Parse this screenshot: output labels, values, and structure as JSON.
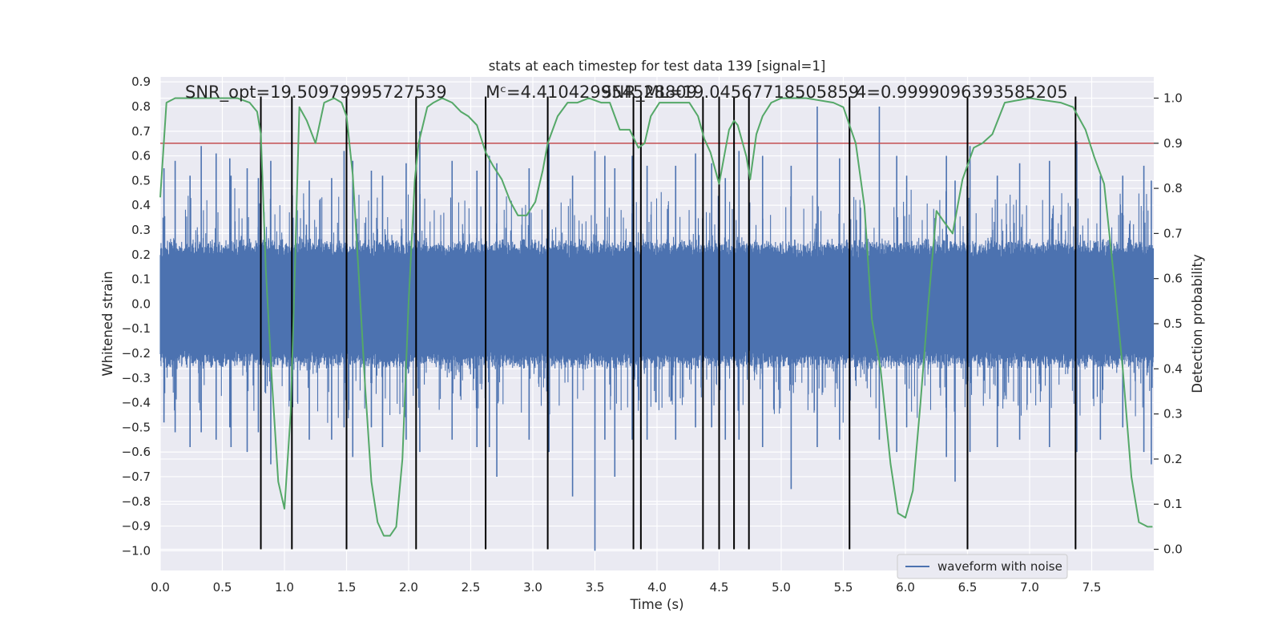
{
  "chart_data": {
    "type": "line",
    "title": "stats at each timestep for test data 139 [signal=1]",
    "xlabel": "Time (s)",
    "ylabel": "Whitened strain",
    "y2label": "Detection probability",
    "xlim": [
      0.0,
      8.0
    ],
    "ylim": [
      -1.08,
      0.92
    ],
    "y2lim": [
      -0.047,
      1.047
    ],
    "x_ticks": [
      "0.0",
      "0.5",
      "1.0",
      "1.5",
      "2.0",
      "2.5",
      "3.0",
      "3.5",
      "4.0",
      "4.5",
      "5.0",
      "5.5",
      "6.0",
      "6.5",
      "7.0",
      "7.5"
    ],
    "y_ticks": [
      "0.9",
      "0.8",
      "0.7",
      "0.6",
      "0.5",
      "0.4",
      "0.3",
      "0.2",
      "0.1",
      "0.0",
      "−0.1",
      "−0.2",
      "−0.3",
      "−0.4",
      "−0.5",
      "−0.6",
      "−0.7",
      "−0.8",
      "−0.9",
      "−1.0"
    ],
    "y2_ticks": [
      "1.0",
      "0.9",
      "0.8",
      "0.7",
      "0.6",
      "0.5",
      "0.4",
      "0.3",
      "0.2",
      "0.1",
      "0.0"
    ],
    "grid": true,
    "legend": {
      "placement": "bottom-right",
      "entries": [
        "waveform with noise"
      ]
    },
    "annotations": [
      {
        "text": "SNR_opt=19.50979995727539",
        "x": 0.2
      },
      {
        "text": "Mᶜ=4.410429954528809",
        "x": 2.62
      },
      {
        "text": "SNR_ML=19.04567718505859",
        "x": 3.55
      },
      {
        "text": "4=0.9999096393585205",
        "x": 5.6
      }
    ],
    "threshold_probability": 0.9,
    "triggers_s": [
      0.81,
      1.06,
      1.5,
      2.06,
      2.62,
      3.12,
      3.81,
      3.87,
      4.37,
      4.5,
      4.62,
      4.74,
      5.55,
      6.5,
      7.37
    ],
    "series": [
      {
        "name": "waveform with noise",
        "color": "#4c72b0",
        "core_amplitude": 0.27,
        "peaks": [
          [
            0.03,
            0.55,
            -0.48
          ],
          [
            0.12,
            0.58,
            -0.52
          ],
          [
            0.24,
            0.52,
            -0.58
          ],
          [
            0.33,
            0.64,
            -0.52
          ],
          [
            0.45,
            0.61,
            -0.55
          ],
          [
            0.56,
            0.59,
            -0.5
          ],
          [
            0.57,
            0.52,
            -0.58
          ],
          [
            0.7,
            0.55,
            -0.6
          ],
          [
            0.79,
            0.51,
            -0.52
          ],
          [
            0.81,
            0.53,
            -0.6
          ],
          [
            0.89,
            0.58,
            -0.65
          ],
          [
            1.06,
            0.58,
            -0.7
          ],
          [
            1.2,
            0.5,
            -0.55
          ],
          [
            1.38,
            0.51,
            -0.55
          ],
          [
            1.48,
            0.62,
            -0.5
          ],
          [
            1.55,
            0.58,
            -0.62
          ],
          [
            1.7,
            0.54,
            -0.5
          ],
          [
            1.79,
            0.52,
            -0.58
          ],
          [
            1.98,
            0.57,
            -0.55
          ],
          [
            2.09,
            0.7,
            -0.6
          ],
          [
            2.35,
            0.58,
            -0.55
          ],
          [
            2.55,
            0.54,
            -0.58
          ],
          [
            2.65,
            0.6,
            -0.58
          ],
          [
            2.71,
            0.57,
            -0.7
          ],
          [
            2.97,
            0.55,
            -0.55
          ],
          [
            3.13,
            0.65,
            -0.6
          ],
          [
            3.32,
            0.52,
            -0.78
          ],
          [
            3.5,
            0.62,
            -1.0
          ],
          [
            3.58,
            0.6,
            -0.55
          ],
          [
            3.66,
            0.55,
            -0.7
          ],
          [
            3.8,
            0.6,
            -0.55
          ],
          [
            3.92,
            0.56,
            -0.55
          ],
          [
            4.15,
            0.56,
            -0.55
          ],
          [
            4.31,
            0.61,
            -0.5
          ],
          [
            4.44,
            0.57,
            -0.5
          ],
          [
            4.55,
            0.51,
            -0.55
          ],
          [
            4.66,
            0.62,
            -0.55
          ],
          [
            4.85,
            0.6,
            -0.58
          ],
          [
            5.08,
            0.56,
            -0.75
          ],
          [
            5.29,
            0.8,
            -0.58
          ],
          [
            5.47,
            0.59,
            -0.55
          ],
          [
            5.79,
            0.8,
            -0.55
          ],
          [
            5.93,
            0.6,
            -0.6
          ],
          [
            6.01,
            0.52,
            -0.5
          ],
          [
            6.33,
            0.6,
            -0.62
          ],
          [
            6.4,
            0.5,
            -0.72
          ],
          [
            6.52,
            0.64,
            -0.6
          ],
          [
            6.74,
            0.52,
            -0.58
          ],
          [
            6.92,
            0.57,
            -0.55
          ],
          [
            7.16,
            0.58,
            -0.58
          ],
          [
            7.38,
            0.66,
            -0.6
          ],
          [
            7.57,
            0.52,
            -0.55
          ],
          [
            7.75,
            0.52,
            -0.5
          ],
          [
            7.92,
            0.56,
            -0.6
          ],
          [
            7.98,
            0.5,
            -0.65
          ]
        ]
      },
      {
        "name": "detection probability",
        "color": "#55a868",
        "axis": "right",
        "x": [
          0.0,
          0.05,
          0.12,
          0.3,
          0.5,
          0.62,
          0.72,
          0.78,
          0.81,
          0.85,
          0.9,
          0.95,
          1.0,
          1.05,
          1.08,
          1.12,
          1.18,
          1.25,
          1.32,
          1.4,
          1.46,
          1.5,
          1.55,
          1.6,
          1.65,
          1.7,
          1.75,
          1.8,
          1.85,
          1.9,
          1.95,
          2.0,
          2.05,
          2.08,
          2.15,
          2.2,
          2.27,
          2.35,
          2.42,
          2.48,
          2.55,
          2.62,
          2.68,
          2.75,
          2.82,
          2.88,
          2.95,
          3.02,
          3.08,
          3.12,
          3.2,
          3.28,
          3.36,
          3.45,
          3.55,
          3.62,
          3.7,
          3.78,
          3.85,
          3.9,
          3.95,
          4.02,
          4.1,
          4.18,
          4.26,
          4.33,
          4.38,
          4.43,
          4.5,
          4.58,
          4.62,
          4.65,
          4.72,
          4.75,
          4.8,
          4.85,
          4.92,
          5.0,
          5.2,
          5.42,
          5.5,
          5.6,
          5.67,
          5.73,
          5.8,
          5.88,
          5.94,
          6.0,
          6.06,
          6.12,
          6.18,
          6.25,
          6.3,
          6.38,
          6.46,
          6.55,
          6.62,
          6.7,
          6.8,
          7.0,
          7.25,
          7.35,
          7.45,
          7.52,
          7.6,
          7.68,
          7.75,
          7.82,
          7.88,
          7.95,
          7.99
        ],
        "y": [
          0.78,
          0.99,
          1.0,
          1.0,
          1.0,
          1.0,
          0.99,
          0.97,
          0.92,
          0.62,
          0.37,
          0.15,
          0.09,
          0.3,
          0.58,
          0.98,
          0.95,
          0.9,
          0.99,
          1.0,
          0.99,
          0.96,
          0.83,
          0.6,
          0.36,
          0.15,
          0.06,
          0.03,
          0.03,
          0.05,
          0.2,
          0.55,
          0.82,
          0.9,
          0.98,
          0.99,
          1.0,
          0.99,
          0.97,
          0.96,
          0.94,
          0.88,
          0.85,
          0.82,
          0.77,
          0.74,
          0.74,
          0.77,
          0.84,
          0.9,
          0.96,
          0.99,
          0.99,
          1.0,
          0.99,
          0.99,
          0.93,
          0.93,
          0.89,
          0.9,
          0.96,
          0.99,
          0.99,
          0.99,
          0.99,
          0.96,
          0.91,
          0.88,
          0.81,
          0.93,
          0.95,
          0.94,
          0.87,
          0.82,
          0.92,
          0.96,
          0.99,
          1.0,
          1.0,
          0.99,
          0.98,
          0.9,
          0.76,
          0.51,
          0.4,
          0.19,
          0.08,
          0.07,
          0.13,
          0.32,
          0.53,
          0.75,
          0.73,
          0.7,
          0.82,
          0.89,
          0.9,
          0.92,
          0.99,
          1.0,
          0.99,
          0.98,
          0.93,
          0.87,
          0.81,
          0.6,
          0.4,
          0.16,
          0.06,
          0.05,
          0.05
        ]
      }
    ]
  }
}
